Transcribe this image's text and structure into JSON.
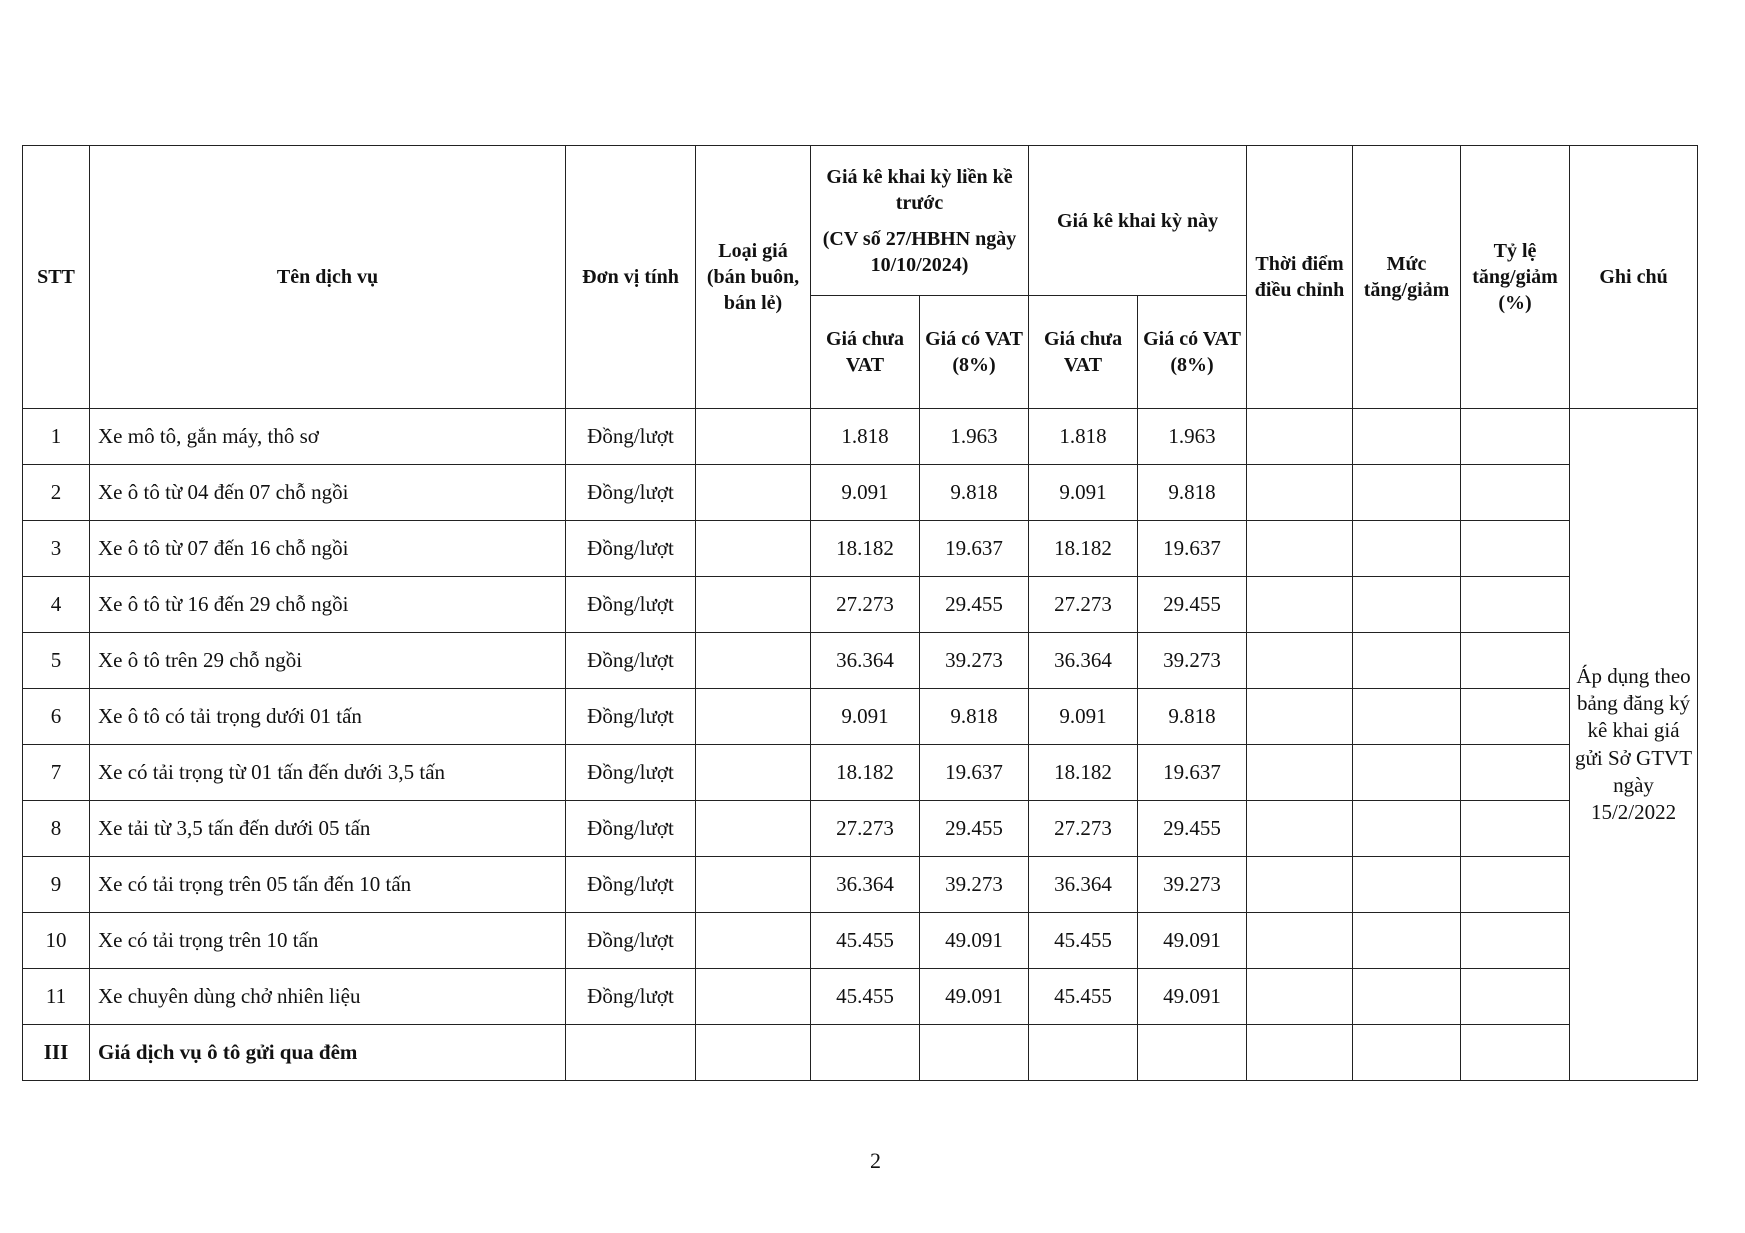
{
  "header": {
    "stt": "STT",
    "service": "Tên dịch vụ",
    "unit": "Đơn vị tính",
    "price_type": "Loại giá (bán buôn, bán lẻ)",
    "previous": {
      "title": "Giá kê khai kỳ liền kề trước",
      "reference": "(CV số 27/HBHN ngày 10/10/2024)"
    },
    "current": "Giá kê khai kỳ này",
    "subheaders": [
      "Giá chưa VAT",
      "Giá có VAT (8%)",
      "Giá chưa VAT",
      "Giá có VAT (8%)"
    ],
    "adjust_time": "Thời điểm điều chỉnh",
    "change": "Mức tăng/giảm",
    "rate": "Tỷ lệ tăng/giảm (%)",
    "note": "Ghi chú"
  },
  "rows": [
    {
      "stt": "1",
      "service": "Xe mô tô, gắn máy, thô sơ",
      "unit": "Đồng/lượt",
      "prices": [
        "1.818",
        "1.963",
        "1.818",
        "1.963"
      ]
    },
    {
      "stt": "2",
      "service": "Xe ô tô từ 04 đến 07 chỗ ngồi",
      "unit": "Đồng/lượt",
      "prices": [
        "9.091",
        "9.818",
        "9.091",
        "9.818"
      ]
    },
    {
      "stt": "3",
      "service": "Xe ô tô từ 07 đến 16 chỗ ngồi",
      "unit": "Đồng/lượt",
      "prices": [
        "18.182",
        "19.637",
        "18.182",
        "19.637"
      ]
    },
    {
      "stt": "4",
      "service": "Xe ô tô từ 16 đến 29 chỗ ngồi",
      "unit": "Đồng/lượt",
      "prices": [
        "27.273",
        "29.455",
        "27.273",
        "29.455"
      ]
    },
    {
      "stt": "5",
      "service": "Xe ô tô trên 29 chỗ ngồi",
      "unit": "Đồng/lượt",
      "prices": [
        "36.364",
        "39.273",
        "36.364",
        "39.273"
      ]
    },
    {
      "stt": "6",
      "service": "Xe ô tô có tải trọng dưới 01 tấn",
      "unit": "Đồng/lượt",
      "prices": [
        "9.091",
        "9.818",
        "9.091",
        "9.818"
      ]
    },
    {
      "stt": "7",
      "service": "Xe có tải trọng từ 01 tấn đến dưới 3,5 tấn",
      "unit": "Đồng/lượt",
      "prices": [
        "18.182",
        "19.637",
        "18.182",
        "19.637"
      ]
    },
    {
      "stt": "8",
      "service": "Xe tải từ 3,5 tấn đến dưới 05 tấn",
      "unit": "Đồng/lượt",
      "prices": [
        "27.273",
        "29.455",
        "27.273",
        "29.455"
      ]
    },
    {
      "stt": "9",
      "service": "Xe có tải trọng trên 05 tấn đến 10 tấn",
      "unit": "Đồng/lượt",
      "prices": [
        "36.364",
        "39.273",
        "36.364",
        "39.273"
      ]
    },
    {
      "stt": "10",
      "service": "Xe có tải trọng trên 10 tấn",
      "unit": "Đồng/lượt",
      "prices": [
        "45.455",
        "49.091",
        "45.455",
        "49.091"
      ]
    },
    {
      "stt": "11",
      "service": "Xe chuyên dùng chở nhiên liệu",
      "unit": "Đồng/lượt",
      "prices": [
        "45.455",
        "49.091",
        "45.455",
        "49.091"
      ]
    },
    {
      "stt": "III",
      "service": "Giá dịch vụ ô tô gửi qua đêm",
      "section": true
    }
  ],
  "note": "Áp dụng theo bảng đăng ký kê khai giá gửi Sở GTVT ngày 15/2/2022",
  "page_number": "2"
}
